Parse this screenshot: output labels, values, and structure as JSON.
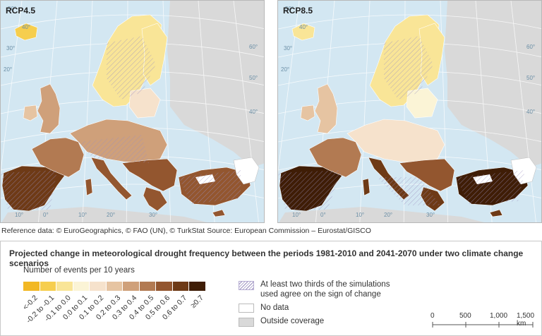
{
  "maps": [
    {
      "label": "RCP4.5"
    },
    {
      "label": "RCP8.5"
    }
  ],
  "graticule_labels": [
    "50°",
    "40°",
    "30°",
    "20°",
    "10°",
    "0°",
    "10°",
    "20°",
    "30°",
    "60°",
    "50°",
    "40°"
  ],
  "reference_text": "Reference data: © EuroGeographics, © FAO (UN), © TurkStat Source: European Commission – Eurostat/GISCO",
  "legend": {
    "title": "Projected change in meteorological drought frequency between the periods 1981-2010 and 2041-2070 under two climate change scenarios",
    "subtitle": "Number of events per 10 years",
    "classes": [
      {
        "label": "<-0.2",
        "color": "#f2b824"
      },
      {
        "label": "-0.2 to -0.1",
        "color": "#f6ce4e"
      },
      {
        "label": "-0.1 to 0.0",
        "color": "#f9e597"
      },
      {
        "label": "0.0 to 0.1",
        "color": "#fbf4d6"
      },
      {
        "label": "0.1 to 0.2",
        "color": "#f6e2cc"
      },
      {
        "label": "0.2 to 0.3",
        "color": "#e6c4a2"
      },
      {
        "label": "0.3 to 0.4",
        "color": "#cfa07a"
      },
      {
        "label": "0.4 to 0.5",
        "color": "#b27a52"
      },
      {
        "label": "0.5 to 0.6",
        "color": "#93562f"
      },
      {
        "label": "0.6 to 0.7",
        "color": "#6e3a16"
      },
      {
        "label": "≥0.7",
        "color": "#3f1d06"
      }
    ],
    "agreement_label_line1": "At least two thirds of the simulations",
    "agreement_label_line2": "used agree on the sign of change",
    "no_data_label": "No data",
    "outside_label": "Outside coverage",
    "scale_ticks": [
      "0",
      "500",
      "1,000",
      "1,500 km"
    ]
  },
  "colors": {
    "sea": "#d3e7f2",
    "outside": "#d9d9d9",
    "nodata": "#ffffff",
    "hatch": "#9a8fbe"
  }
}
